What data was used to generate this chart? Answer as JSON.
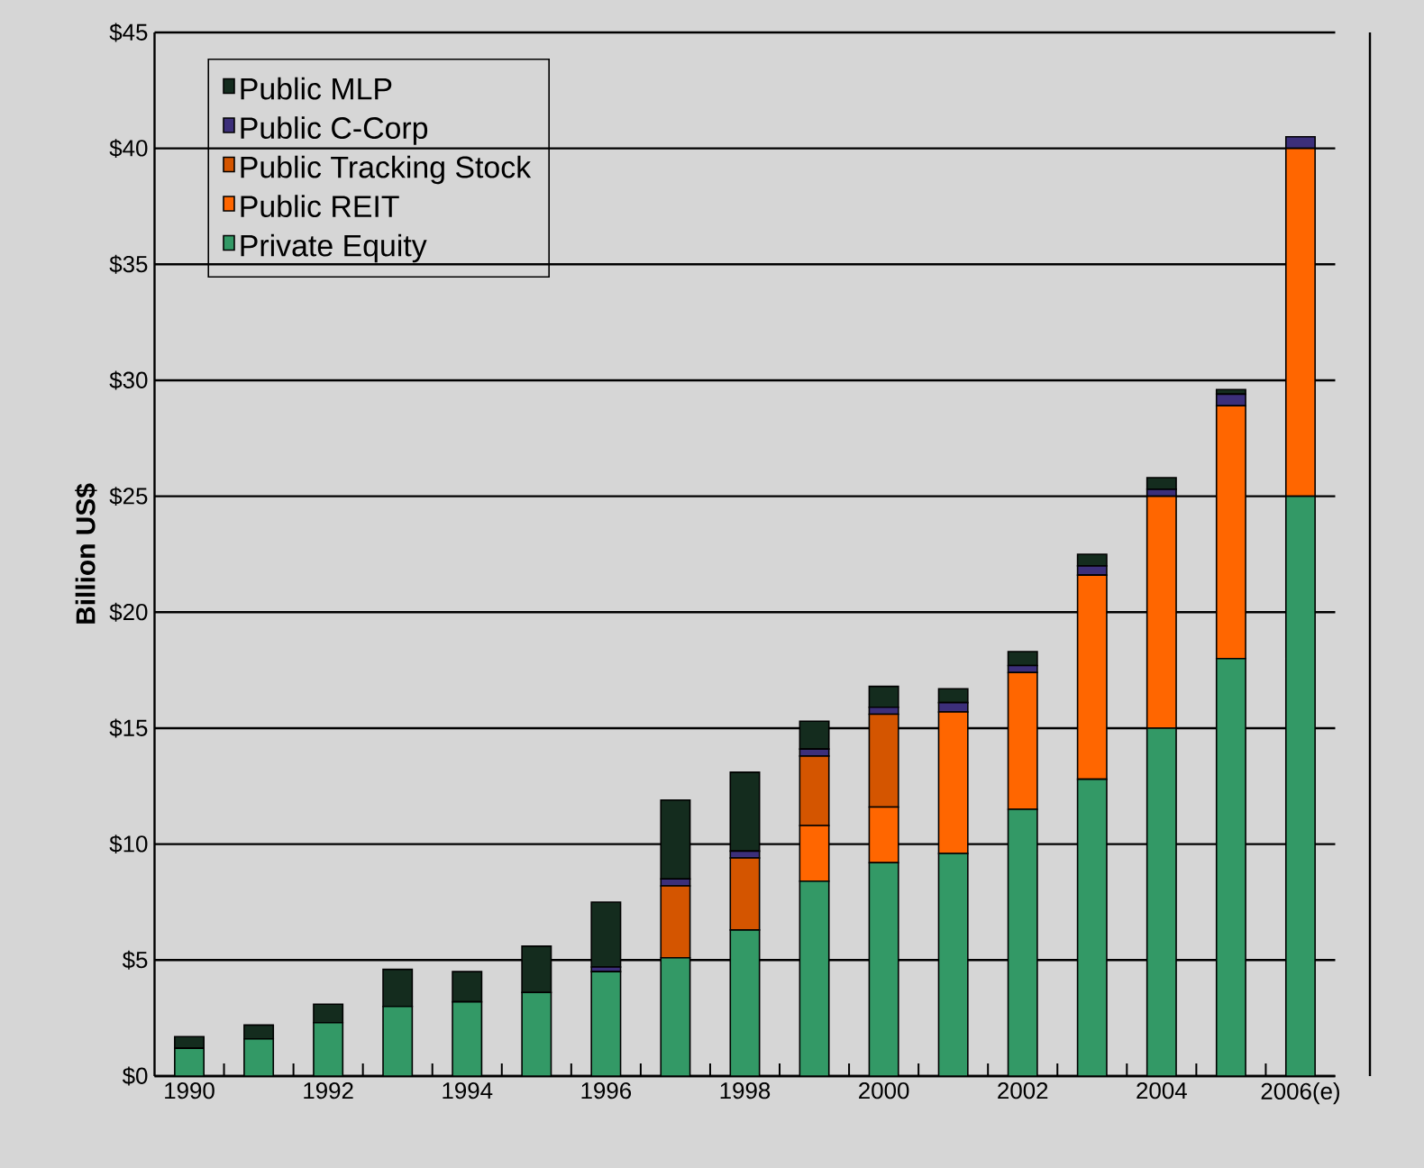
{
  "chart_data": {
    "type": "bar",
    "stacked": true,
    "ylabel": "Billion US$",
    "categories": [
      "1990",
      null,
      "1992",
      null,
      "1994",
      null,
      "1996",
      null,
      "1998",
      null,
      "2000",
      null,
      "2002",
      null,
      "2004",
      null,
      "2006(e)"
    ],
    "series": [
      {
        "name": "Private Equity",
        "color": "#339966",
        "values": [
          1.2,
          1.6,
          2.3,
          3.0,
          3.2,
          3.6,
          4.5,
          5.1,
          6.3,
          8.4,
          9.2,
          9.6,
          11.5,
          12.8,
          15.0,
          18.0,
          25.0
        ]
      },
      {
        "name": "Public REIT",
        "color": "#ff6600",
        "values": [
          0,
          0,
          0,
          0,
          0,
          0,
          0,
          0,
          0,
          2.4,
          2.4,
          6.1,
          5.9,
          8.8,
          10.0,
          10.9,
          15.0
        ]
      },
      {
        "name": "Public Tracking Stock",
        "color": "#d45500",
        "values": [
          0,
          0,
          0,
          0,
          0,
          0,
          0,
          3.1,
          3.1,
          3.0,
          4.0,
          0,
          0,
          0,
          0,
          0,
          0
        ]
      },
      {
        "name": "Public C-Corp",
        "color": "#3c2f7a",
        "values": [
          0,
          0,
          0,
          0,
          0,
          0,
          0.2,
          0.3,
          0.3,
          0.3,
          0.3,
          0.4,
          0.3,
          0.4,
          0.3,
          0.5,
          0.5
        ]
      },
      {
        "name": "Public MLP",
        "color": "#142c1e",
        "values": [
          0.5,
          0.6,
          0.8,
          1.6,
          1.3,
          2.0,
          2.8,
          3.4,
          3.4,
          1.2,
          0.9,
          0.6,
          0.6,
          0.5,
          0.5,
          0.2,
          0
        ]
      }
    ],
    "ylim": [
      0,
      45
    ],
    "yticks": [
      {
        "value": 0,
        "label": "$0"
      },
      {
        "value": 5,
        "label": "$5"
      },
      {
        "value": 10,
        "label": "$10"
      },
      {
        "value": 15,
        "label": "$15"
      },
      {
        "value": 20,
        "label": "$20"
      },
      {
        "value": 25,
        "label": "$25"
      },
      {
        "value": 30,
        "label": "$30"
      },
      {
        "value": 35,
        "label": "$35"
      },
      {
        "value": 40,
        "label": "$40"
      },
      {
        "value": 45,
        "label": "$45"
      }
    ],
    "grid": "y",
    "legend": "top left"
  }
}
